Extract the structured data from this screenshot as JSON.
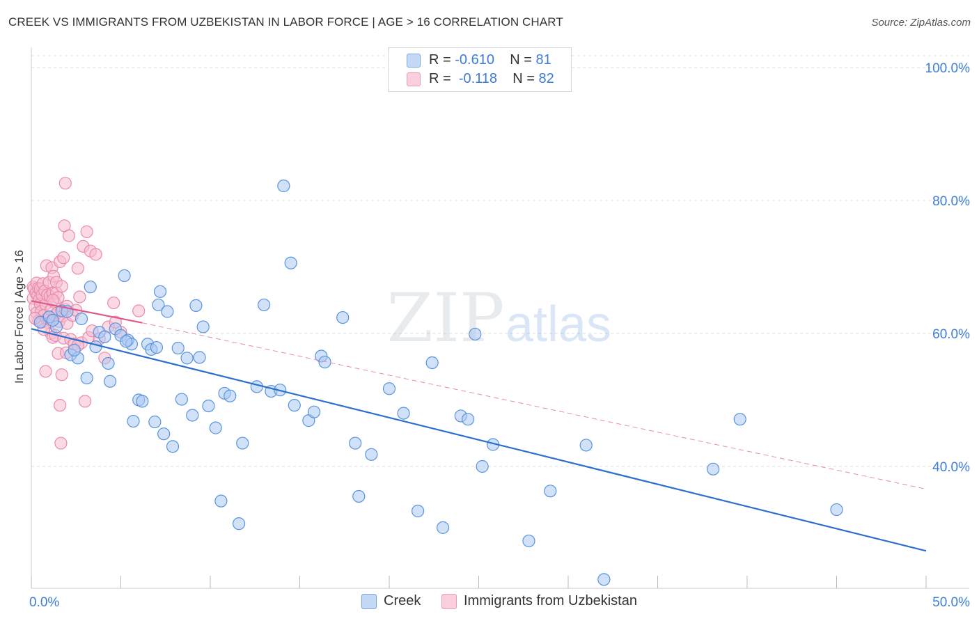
{
  "title": "CREEK VS IMMIGRANTS FROM UZBEKISTAN IN LABOR FORCE | AGE > 16 CORRELATION CHART",
  "source": "Source: ZipAtlas.com",
  "watermark": {
    "zip": "ZIP",
    "atlas": "atlas"
  },
  "legend": {
    "rows": [
      {
        "r_label": "R =",
        "r_value": "-0.610",
        "n_label": "N =",
        "n_value": "81",
        "color": "#a9c8f2"
      },
      {
        "r_label": "R =",
        "r_value": "-0.118",
        "n_label": "N =",
        "n_value": "82",
        "color": "#f6bcd0"
      }
    ]
  },
  "bottom_legend": {
    "creek": "Creek",
    "uzbekistan": "Immigrants from Uzbekistan"
  },
  "chart_data": {
    "type": "scatter",
    "ylabel": "In Labor Force | Age > 16",
    "xlim": [
      0,
      50
    ],
    "ylim": [
      22,
      102
    ],
    "x_tick_labels": [
      {
        "value": 0,
        "label": "0.0%"
      },
      {
        "value": 50,
        "label": "50.0%"
      }
    ],
    "y_tick_labels": [
      {
        "value": 100,
        "label": "100.0%"
      },
      {
        "value": 80,
        "label": "80.0%"
      },
      {
        "value": 60,
        "label": "60.0%"
      },
      {
        "value": 40,
        "label": "40.0%"
      }
    ],
    "grid": true,
    "series": [
      {
        "name": "Creek",
        "color": "#a9c8f2",
        "edge": "#5a93dd",
        "trend": {
          "x": [
            0,
            50
          ],
          "y": [
            60.7,
            27.3
          ],
          "color": "#2b6fd0"
        },
        "points": [
          [
            0.5,
            61.7
          ],
          [
            1.0,
            62.5
          ],
          [
            1.4,
            61.0
          ],
          [
            1.7,
            63.4
          ],
          [
            2.0,
            63.3
          ],
          [
            2.2,
            56.8
          ],
          [
            2.6,
            56.3
          ],
          [
            2.8,
            62.2
          ],
          [
            3.1,
            53.3
          ],
          [
            3.3,
            67.0
          ],
          [
            3.6,
            58.0
          ],
          [
            3.8,
            60.2
          ],
          [
            4.1,
            59.5
          ],
          [
            4.3,
            55.5
          ],
          [
            4.4,
            52.8
          ],
          [
            4.7,
            60.7
          ],
          [
            5.0,
            59.7
          ],
          [
            5.2,
            68.7
          ],
          [
            5.4,
            59.0
          ],
          [
            5.6,
            58.4
          ],
          [
            5.7,
            46.8
          ],
          [
            6.0,
            50.0
          ],
          [
            6.2,
            49.8
          ],
          [
            6.5,
            58.4
          ],
          [
            6.7,
            57.6
          ],
          [
            6.9,
            46.7
          ],
          [
            7.1,
            64.3
          ],
          [
            7.2,
            66.3
          ],
          [
            7.4,
            44.9
          ],
          [
            7.6,
            63.3
          ],
          [
            7.9,
            43.0
          ],
          [
            8.2,
            57.8
          ],
          [
            8.4,
            50.1
          ],
          [
            8.7,
            56.3
          ],
          [
            9.0,
            47.7
          ],
          [
            9.2,
            64.2
          ],
          [
            9.6,
            61.0
          ],
          [
            9.9,
            49.1
          ],
          [
            10.3,
            45.8
          ],
          [
            10.6,
            34.8
          ],
          [
            10.8,
            51.0
          ],
          [
            11.1,
            50.6
          ],
          [
            11.6,
            31.4
          ],
          [
            11.8,
            43.5
          ],
          [
            12.6,
            52.0
          ],
          [
            13.0,
            64.3
          ],
          [
            13.4,
            51.3
          ],
          [
            13.9,
            51.5
          ],
          [
            14.1,
            82.2
          ],
          [
            14.5,
            70.6
          ],
          [
            14.7,
            49.2
          ],
          [
            15.5,
            46.9
          ],
          [
            15.8,
            48.2
          ],
          [
            16.2,
            56.6
          ],
          [
            16.4,
            55.7
          ],
          [
            17.4,
            62.4
          ],
          [
            18.1,
            43.5
          ],
          [
            18.3,
            35.5
          ],
          [
            19.0,
            41.8
          ],
          [
            20.0,
            51.7
          ],
          [
            20.8,
            48.0
          ],
          [
            21.6,
            33.3
          ],
          [
            22.4,
            55.6
          ],
          [
            23.0,
            30.8
          ],
          [
            24.0,
            47.6
          ],
          [
            24.4,
            47.1
          ],
          [
            24.8,
            59.9
          ],
          [
            25.2,
            40.0
          ],
          [
            25.8,
            43.3
          ],
          [
            27.8,
            28.8
          ],
          [
            29.0,
            36.3
          ],
          [
            31.0,
            43.2
          ],
          [
            32.0,
            23.0
          ],
          [
            38.1,
            39.6
          ],
          [
            39.6,
            47.1
          ],
          [
            45.0,
            33.5
          ],
          [
            1.2,
            62.0
          ],
          [
            2.4,
            57.5
          ],
          [
            5.3,
            58.8
          ],
          [
            7.0,
            57.9
          ],
          [
            9.4,
            56.4
          ]
        ]
      },
      {
        "name": "Immigrants from Uzbekistan",
        "color": "#f6bcd0",
        "edge": "#e98aac",
        "trend": {
          "x": [
            0,
            6.2
          ],
          "y": [
            64.9,
            61.6
          ],
          "color": "#e0578a"
        },
        "trend_extension": {
          "x": [
            6.2,
            50
          ],
          "y": [
            61.6,
            36.6
          ],
          "color": "#e98aac"
        },
        "points": [
          [
            0.1,
            67.0
          ],
          [
            0.1,
            65.3
          ],
          [
            0.15,
            66.7
          ],
          [
            0.2,
            64.0
          ],
          [
            0.25,
            66.1
          ],
          [
            0.3,
            67.6
          ],
          [
            0.3,
            63.1
          ],
          [
            0.35,
            65.7
          ],
          [
            0.4,
            66.8
          ],
          [
            0.4,
            61.9
          ],
          [
            0.45,
            65.1
          ],
          [
            0.5,
            66.7
          ],
          [
            0.5,
            64.4
          ],
          [
            0.55,
            63.3
          ],
          [
            0.6,
            65.8
          ],
          [
            0.6,
            61.7
          ],
          [
            0.65,
            67.5
          ],
          [
            0.7,
            62.7
          ],
          [
            0.75,
            66.4
          ],
          [
            0.8,
            64.4
          ],
          [
            0.8,
            54.3
          ],
          [
            0.85,
            70.2
          ],
          [
            0.9,
            65.8
          ],
          [
            0.95,
            62.4
          ],
          [
            1.0,
            67.7
          ],
          [
            1.0,
            61.6
          ],
          [
            1.05,
            65.6
          ],
          [
            1.1,
            63.5
          ],
          [
            1.1,
            60.0
          ],
          [
            1.15,
            69.9
          ],
          [
            1.2,
            66.1
          ],
          [
            1.2,
            59.4
          ],
          [
            1.25,
            68.6
          ],
          [
            1.3,
            64.7
          ],
          [
            1.3,
            62.7
          ],
          [
            1.35,
            59.7
          ],
          [
            1.4,
            67.7
          ],
          [
            1.4,
            66.1
          ],
          [
            1.45,
            63.1
          ],
          [
            1.5,
            65.4
          ],
          [
            1.5,
            57.0
          ],
          [
            1.55,
            61.8
          ],
          [
            1.6,
            49.2
          ],
          [
            1.6,
            70.8
          ],
          [
            1.65,
            43.5
          ],
          [
            1.7,
            67.1
          ],
          [
            1.7,
            53.8
          ],
          [
            1.75,
            62.6
          ],
          [
            1.8,
            71.4
          ],
          [
            1.8,
            59.3
          ],
          [
            1.85,
            76.2
          ],
          [
            1.9,
            82.6
          ],
          [
            1.9,
            63.6
          ],
          [
            1.95,
            57.1
          ],
          [
            2.0,
            61.5
          ],
          [
            2.0,
            64.1
          ],
          [
            2.1,
            74.7
          ],
          [
            2.2,
            59.1
          ],
          [
            2.3,
            62.7
          ],
          [
            2.4,
            58.4
          ],
          [
            2.5,
            63.5
          ],
          [
            2.6,
            69.8
          ],
          [
            2.7,
            65.5
          ],
          [
            2.8,
            58.6
          ],
          [
            2.9,
            73.1
          ],
          [
            3.0,
            49.8
          ],
          [
            3.1,
            75.3
          ],
          [
            3.2,
            59.4
          ],
          [
            3.3,
            72.4
          ],
          [
            3.4,
            60.4
          ],
          [
            3.6,
            71.9
          ],
          [
            3.8,
            59.2
          ],
          [
            4.1,
            56.3
          ],
          [
            4.3,
            61.0
          ],
          [
            4.6,
            64.6
          ],
          [
            4.7,
            61.7
          ],
          [
            5.0,
            60.2
          ],
          [
            6.0,
            63.4
          ],
          [
            0.2,
            62.3
          ],
          [
            1.2,
            65.0
          ],
          [
            2.6,
            58.2
          ],
          [
            0.7,
            60.6
          ]
        ]
      }
    ]
  }
}
